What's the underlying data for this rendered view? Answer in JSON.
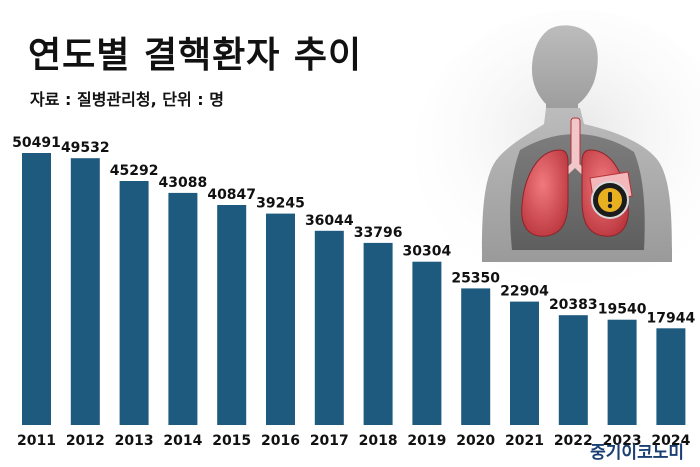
{
  "title": "연도별 결핵환자 추이",
  "subtitle": "자료 : 질병관리청, 단위 : 명",
  "source_logo": "중기이코노미",
  "colors": {
    "bar": "#1e5a7e",
    "text": "#111111",
    "logo": "#1a3f73",
    "lung": "#d8484f"
  },
  "illustration": {
    "icons": [
      "human-torso-silhouette",
      "lungs-icon",
      "warning-icon"
    ]
  },
  "chart_data": {
    "type": "bar",
    "categories": [
      "2011",
      "2012",
      "2013",
      "2014",
      "2015",
      "2016",
      "2017",
      "2018",
      "2019",
      "2020",
      "2021",
      "2022",
      "2023",
      "2024"
    ],
    "values": [
      50491,
      49532,
      45292,
      43088,
      40847,
      39245,
      36044,
      33796,
      30304,
      25350,
      22904,
      20383,
      19540,
      17944
    ],
    "title": "연도별 결핵환자 추이",
    "xlabel": "",
    "ylabel": "",
    "ylim": [
      0,
      50491
    ],
    "grid": false,
    "legend": "none"
  }
}
